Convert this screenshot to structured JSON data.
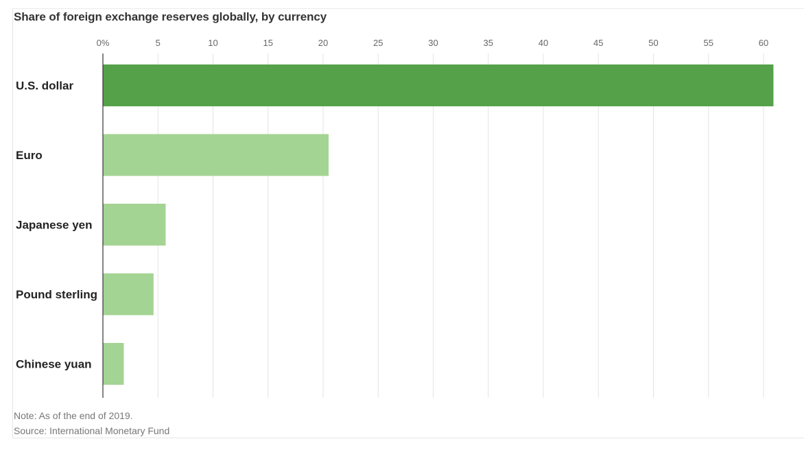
{
  "chart_data": {
    "type": "bar",
    "orientation": "horizontal",
    "title": "Share of foreign exchange reserves globally, by currency",
    "categories": [
      "U.S. dollar",
      "Euro",
      "Japanese yen",
      "Pound sterling",
      "Chinese yuan"
    ],
    "values": [
      60.9,
      20.5,
      5.7,
      4.6,
      1.9
    ],
    "highlight_color": "#55a14a",
    "base_color": "#a4d493",
    "xlim": [
      0,
      62
    ],
    "x_ticks": [
      0,
      5,
      10,
      15,
      20,
      25,
      30,
      35,
      40,
      45,
      50,
      55,
      60
    ],
    "x_tick_labels": [
      "0%",
      "5",
      "10",
      "15",
      "20",
      "25",
      "30",
      "35",
      "40",
      "45",
      "50",
      "55",
      "60"
    ],
    "gridlines": true,
    "axis_position": "top"
  },
  "footer": {
    "note": "Note: As of the end of 2019.",
    "source": "Source: International Monetary Fund"
  }
}
